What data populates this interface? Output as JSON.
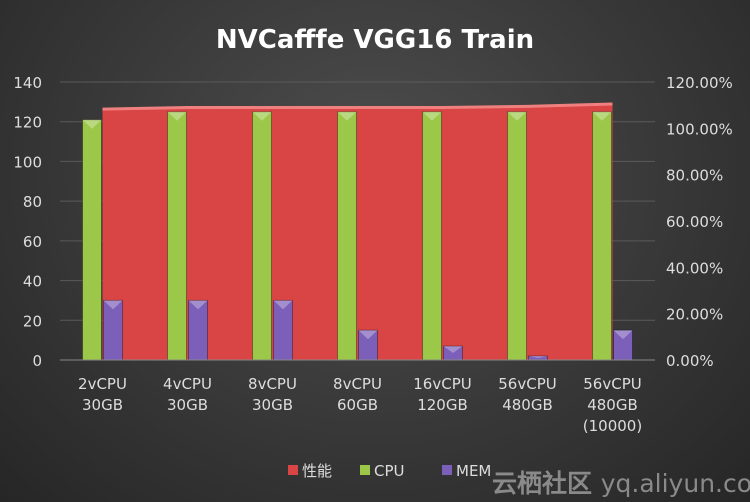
{
  "chart_data": {
    "type": "bar",
    "title": "NVCafffe VGG16 Train",
    "categories": [
      [
        "2vCPU",
        "30GB"
      ],
      [
        "4vCPU",
        "30GB"
      ],
      [
        "8vCPU",
        "30GB"
      ],
      [
        "8vCPU",
        "60GB"
      ],
      [
        "16vCPU",
        "120GB"
      ],
      [
        "56vCPU",
        "480GB"
      ],
      [
        "56vCPU",
        "480GB",
        "(10000)"
      ]
    ],
    "ylim": [
      0,
      140
    ],
    "yticks": [
      0,
      20,
      40,
      60,
      80,
      100,
      120,
      140
    ],
    "y2lim": [
      0,
      120
    ],
    "y2ticks": [
      "0.00%",
      "20.00%",
      "40.00%",
      "60.00%",
      "80.00%",
      "100.00%",
      "120.00%"
    ],
    "series": [
      {
        "name": "性能",
        "type": "area",
        "axis": "right",
        "color": "#d94444",
        "values": [
          108.3,
          109,
          109,
          109,
          109,
          109.5,
          110.5
        ]
      },
      {
        "name": "CPU",
        "type": "bar",
        "axis": "left",
        "color": "#9cc84a",
        "values": [
          121,
          125,
          125,
          125,
          125,
          125,
          125
        ]
      },
      {
        "name": "MEM",
        "type": "bar",
        "axis": "left",
        "color": "#7b5fb8",
        "values": [
          30,
          30,
          30,
          15,
          7,
          2,
          15
        ]
      }
    ],
    "legend": "bottom"
  },
  "watermark": {
    "cn": "云栖社区",
    "url": "yq.aliyun.com"
  }
}
